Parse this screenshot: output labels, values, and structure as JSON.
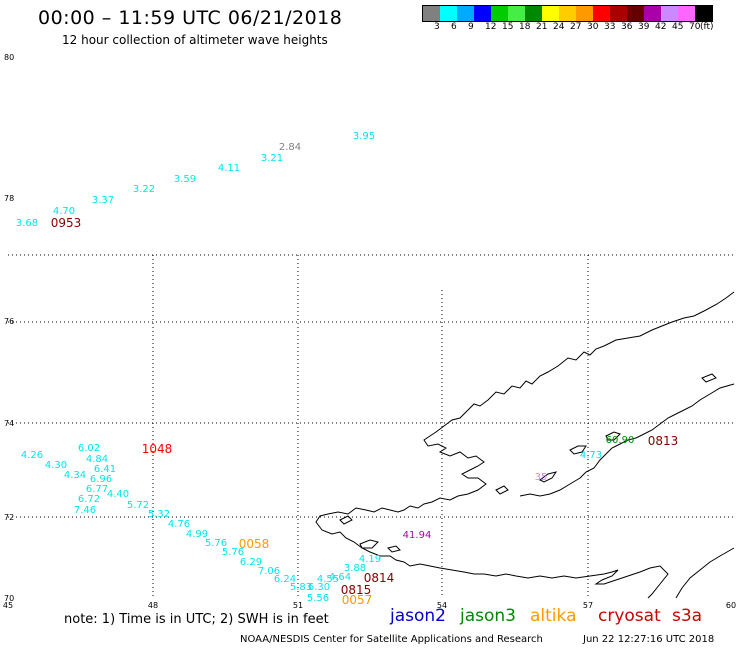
{
  "header": {
    "title": "00:00 – 11:59 UTC 06/21/2018",
    "subtitle": "12 hour collection of altimeter wave heights"
  },
  "legend": {
    "colors": [
      "#808080",
      "#00ffff",
      "#00aaff",
      "#0000ff",
      "#00cc00",
      "#44ee44",
      "#008800",
      "#ffff00",
      "#ffcc00",
      "#ff9900",
      "#ff0000",
      "#aa0000",
      "#660000",
      "#aa00aa",
      "#cc88ff",
      "#ff66ff",
      "#000000"
    ],
    "labels": [
      "3",
      "6",
      "9",
      "12",
      "15",
      "18",
      "21",
      "24",
      "27",
      "30",
      "33",
      "36",
      "39",
      "42",
      "45",
      "70",
      "(ft)"
    ]
  },
  "axes": {
    "lat_labels": [
      "80",
      "78",
      "76",
      "74",
      "72",
      "70"
    ],
    "lon_labels": [
      "45",
      "48",
      "51",
      "54",
      "57",
      "60"
    ]
  },
  "observations": [
    {
      "v": "3.95",
      "c": "#00e5ee"
    },
    {
      "v": "2.84",
      "c": "#808080"
    },
    {
      "v": "3.21",
      "c": "#00e5ee"
    },
    {
      "v": "4.11",
      "c": "#00e5ee"
    },
    {
      "v": "3.59",
      "c": "#00e5ee"
    },
    {
      "v": "3.22",
      "c": "#00e5ee"
    },
    {
      "v": "3.37",
      "c": "#00e5ee"
    },
    {
      "v": "4.70",
      "c": "#00e5ee"
    },
    {
      "v": "3.68",
      "c": "#00e5ee"
    },
    {
      "v": "6.02",
      "c": "#00e5ee"
    },
    {
      "v": "4.84",
      "c": "#00e5ee"
    },
    {
      "v": "6.41",
      "c": "#00e5ee"
    },
    {
      "v": "6.96",
      "c": "#00e5ee"
    },
    {
      "v": "6.77",
      "c": "#00e5ee"
    },
    {
      "v": "4.40",
      "c": "#00e5ee"
    },
    {
      "v": "4.26",
      "c": "#00e5ee"
    },
    {
      "v": "4.30",
      "c": "#00e5ee"
    },
    {
      "v": "4.34",
      "c": "#00e5ee"
    },
    {
      "v": "6.72",
      "c": "#00e5ee"
    },
    {
      "v": "7.46",
      "c": "#00e5ee"
    },
    {
      "v": "5.72",
      "c": "#00e5ee"
    },
    {
      "v": "5.32",
      "c": "#00e5ee"
    },
    {
      "v": "4.76",
      "c": "#00e5ee"
    },
    {
      "v": "4.99",
      "c": "#00e5ee"
    },
    {
      "v": "5.76",
      "c": "#00e5ee"
    },
    {
      "v": "5.76",
      "c": "#00e5ee"
    },
    {
      "v": "6.29",
      "c": "#00e5ee"
    },
    {
      "v": "7.06",
      "c": "#00e5ee"
    },
    {
      "v": "6.24",
      "c": "#00e5ee"
    },
    {
      "v": "5.83",
      "c": "#00e5ee"
    },
    {
      "v": "6.30",
      "c": "#00e5ee"
    },
    {
      "v": "5.56",
      "c": "#00e5ee"
    },
    {
      "v": "4.55",
      "c": "#00e5ee"
    },
    {
      "v": "4.64",
      "c": "#00e5ee"
    },
    {
      "v": "3.88",
      "c": "#00e5ee"
    },
    {
      "v": "4.19",
      "c": "#00e5ee"
    },
    {
      "v": "41.94",
      "c": "#aa00aa"
    },
    {
      "v": "4.73",
      "c": "#00e5ee"
    },
    {
      "v": "60.90",
      "c": "#008800"
    },
    {
      "v": "35",
      "c": "#cc88ff"
    }
  ],
  "passes": [
    {
      "t": "0953",
      "c": "#880000"
    },
    {
      "t": "1048",
      "c": "#ff0000"
    },
    {
      "t": "0058",
      "c": "#ff9900"
    },
    {
      "t": "0814",
      "c": "#880000"
    },
    {
      "t": "0815",
      "c": "#880000"
    },
    {
      "t": "0057",
      "c": "#ff9900"
    },
    {
      "t": "0813",
      "c": "#880000"
    }
  ],
  "footer": {
    "note": "note: 1) Time is in UTC; 2) SWH is in feet",
    "satellites": [
      {
        "name": "jason2",
        "color": "#0000cc"
      },
      {
        "name": "jason3",
        "color": "#008800"
      },
      {
        "name": "altika",
        "color": "#ff9900"
      },
      {
        "name": "cryosat",
        "color": "#cc0000"
      },
      {
        "name": "s3a",
        "color": "#cc0000"
      }
    ],
    "credit": "NOAA/NESDIS Center for Satellite Applications and Research",
    "timestamp": "Jun 22 12:27:16 UTC 2018"
  }
}
